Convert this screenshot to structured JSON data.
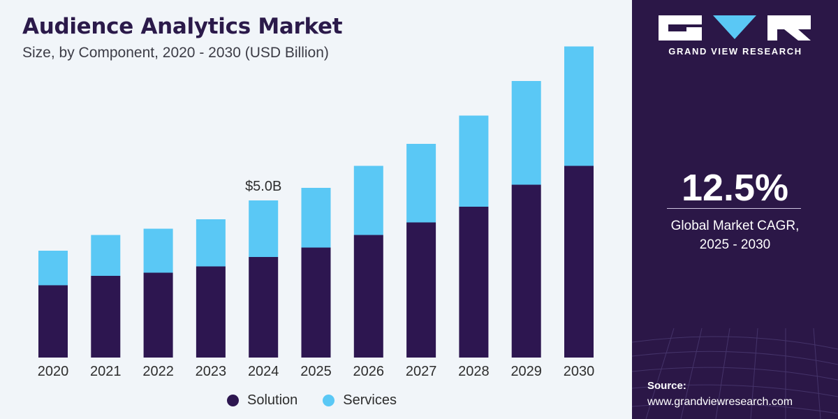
{
  "title": "Audience Analytics Market",
  "subtitle": "Size, by Component, 2020 - 2030 (USD Billion)",
  "legend": {
    "solution": "Solution",
    "services": "Services"
  },
  "colors": {
    "solution": "#2d1650",
    "services": "#5ac8f5",
    "panel": "#2b1747",
    "background": "#f1f5f9"
  },
  "side": {
    "brand": "GRAND VIEW RESEARCH",
    "cagr_value": "12.5%",
    "cagr_label_line1": "Global Market CAGR,",
    "cagr_label_line2": "2025 - 2030",
    "source_label": "Source:",
    "source_url": "www.grandviewresearch.com"
  },
  "chart_data": {
    "type": "bar",
    "stacked": true,
    "categories": [
      "2020",
      "2021",
      "2022",
      "2023",
      "2024",
      "2025",
      "2026",
      "2027",
      "2028",
      "2029",
      "2030"
    ],
    "series": [
      {
        "name": "Solution",
        "values": [
          2.3,
          2.6,
          2.7,
          2.9,
          3.2,
          3.5,
          3.9,
          4.3,
          4.8,
          5.5,
          6.1
        ]
      },
      {
        "name": "Services",
        "values": [
          1.1,
          1.3,
          1.4,
          1.5,
          1.8,
          1.9,
          2.2,
          2.5,
          2.9,
          3.3,
          3.8
        ]
      }
    ],
    "annotations": [
      {
        "category": "2024",
        "text": "$5.0B"
      }
    ],
    "ylim": [
      0,
      10
    ],
    "grid": false,
    "legend_position": "bottom"
  }
}
